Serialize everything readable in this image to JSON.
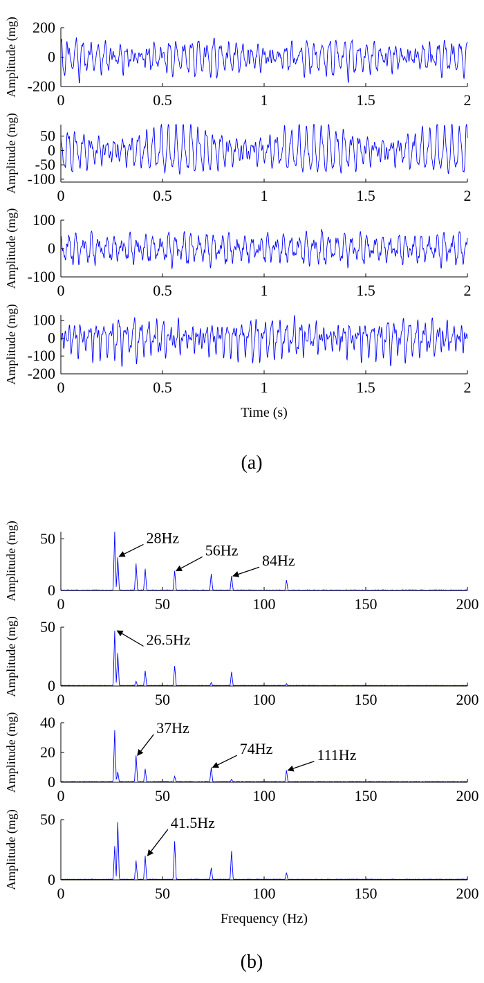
{
  "figure": {
    "label_a": "(a)",
    "label_b": "(b)"
  },
  "chart_data": [
    {
      "type": "line",
      "panel": "a",
      "xlabel": "",
      "ylabel": "Amplitude (mg)",
      "xlim": [
        0,
        2
      ],
      "ylim": [
        -200,
        200
      ],
      "xticks": [
        0,
        0.5,
        1,
        1.5,
        2
      ],
      "xtick_labels": [
        "0",
        "0.5",
        "1",
        "1.5",
        "2"
      ],
      "yticks": [
        -200,
        0,
        200
      ],
      "ytick_labels": [
        "-200",
        "0",
        "200"
      ],
      "signal": {
        "duration": 2,
        "peak_amplitude": 175,
        "components": [
          {
            "freq": 28,
            "amp": 55
          },
          {
            "freq": 26.5,
            "amp": 30
          },
          {
            "freq": 37,
            "amp": 25
          },
          {
            "freq": 41.5,
            "amp": 15
          },
          {
            "freq": 56,
            "amp": 15
          },
          {
            "freq": 84,
            "amp": 12
          },
          {
            "freq": 74,
            "amp": 12
          },
          {
            "freq": 111,
            "amp": 8
          }
        ],
        "seed": 11
      },
      "series": [
        {
          "color": "#0000ff"
        }
      ]
    },
    {
      "type": "line",
      "panel": "a",
      "xlabel": "",
      "ylabel": "Amplitude (mg)",
      "xlim": [
        0,
        2
      ],
      "ylim": [
        -110,
        90
      ],
      "xticks": [
        0,
        0.5,
        1,
        1.5,
        2
      ],
      "xtick_labels": [
        "0",
        "0.5",
        "1",
        "1.5",
        "2"
      ],
      "yticks": [
        -100,
        -50,
        0,
        50
      ],
      "ytick_labels": [
        "-100",
        "-50",
        "0",
        "50"
      ],
      "signal": {
        "duration": 2,
        "peak_amplitude": 108,
        "components": [
          {
            "freq": 26.5,
            "amp": 48
          },
          {
            "freq": 28,
            "amp": 28
          },
          {
            "freq": 56,
            "amp": 16
          },
          {
            "freq": 41.5,
            "amp": 13
          },
          {
            "freq": 84,
            "amp": 12
          }
        ],
        "seed": 23
      },
      "series": [
        {
          "color": "#0000ff"
        }
      ]
    },
    {
      "type": "line",
      "panel": "a",
      "xlabel": "",
      "ylabel": "Amplitude (mg)",
      "xlim": [
        0,
        2
      ],
      "ylim": [
        -100,
        100
      ],
      "xticks": [
        0,
        0.5,
        1,
        1.5,
        2
      ],
      "xtick_labels": [
        "0",
        "0.5",
        "1",
        "1.5",
        "2"
      ],
      "yticks": [
        -100,
        0,
        100
      ],
      "ytick_labels": [
        "-100",
        "0",
        "100"
      ],
      "signal": {
        "duration": 2,
        "peak_amplitude": 72,
        "components": [
          {
            "freq": 26.5,
            "amp": 35
          },
          {
            "freq": 37,
            "amp": 18
          },
          {
            "freq": 74,
            "amp": 10
          },
          {
            "freq": 41.5,
            "amp": 9
          },
          {
            "freq": 111,
            "amp": 8
          },
          {
            "freq": 28,
            "amp": 6
          }
        ],
        "seed": 37
      },
      "series": [
        {
          "color": "#0000ff"
        }
      ]
    },
    {
      "type": "line",
      "panel": "a",
      "xlabel": "Time (s)",
      "ylabel": "Amplitude (mg)",
      "xlim": [
        0,
        2
      ],
      "ylim": [
        -200,
        130
      ],
      "xticks": [
        0,
        0.5,
        1,
        1.5,
        2
      ],
      "xtick_labels": [
        "0",
        "0.5",
        "1",
        "1.5",
        "2"
      ],
      "yticks": [
        -200,
        -100,
        0,
        100
      ],
      "ytick_labels": [
        "-200",
        "-100",
        "0",
        "100"
      ],
      "signal": {
        "duration": 2,
        "peak_amplitude": 158,
        "components": [
          {
            "freq": 28,
            "amp": 48
          },
          {
            "freq": 56,
            "amp": 32
          },
          {
            "freq": 26.5,
            "amp": 28
          },
          {
            "freq": 84,
            "amp": 24
          },
          {
            "freq": 41.5,
            "amp": 20
          },
          {
            "freq": 37,
            "amp": 16
          },
          {
            "freq": 74,
            "amp": 10
          }
        ],
        "seed": 51
      },
      "series": [
        {
          "color": "#0000ff"
        }
      ]
    },
    {
      "type": "line",
      "panel": "b",
      "xlabel": "",
      "ylabel": "Amplitude (mg)",
      "xlim": [
        0,
        200
      ],
      "ylim": [
        0,
        57
      ],
      "xticks": [
        0,
        50,
        100,
        150,
        200
      ],
      "xtick_labels": [
        "0",
        "50",
        "100",
        "150",
        "200"
      ],
      "yticks": [
        0,
        50
      ],
      "ytick_labels": [
        "0",
        "50"
      ],
      "peaks": [
        {
          "freq": 26.5,
          "amp": 57
        },
        {
          "freq": 28,
          "amp": 32
        },
        {
          "freq": 37,
          "amp": 26
        },
        {
          "freq": 41.5,
          "amp": 21
        },
        {
          "freq": 56,
          "amp": 19
        },
        {
          "freq": 74,
          "amp": 16
        },
        {
          "freq": 84,
          "amp": 14
        },
        {
          "freq": 111,
          "amp": 10
        }
      ],
      "annotations": [
        {
          "text": "28Hz",
          "freq": 28,
          "amp": 33,
          "label_freq": 42,
          "label_amp": 46
        },
        {
          "text": "56Hz",
          "freq": 56,
          "amp": 19,
          "label_freq": 71,
          "label_amp": 34
        },
        {
          "text": "84Hz",
          "freq": 84,
          "amp": 14,
          "label_freq": 99,
          "label_amp": 24
        }
      ],
      "series": [
        {
          "color": "#0000ff"
        }
      ]
    },
    {
      "type": "line",
      "panel": "b",
      "xlabel": "",
      "ylabel": "Amplitude (mg)",
      "xlim": [
        0,
        200
      ],
      "ylim": [
        0,
        50
      ],
      "xticks": [
        0,
        50,
        100,
        150,
        200
      ],
      "xtick_labels": [
        "0",
        "50",
        "100",
        "150",
        "200"
      ],
      "yticks": [
        0,
        50
      ],
      "ytick_labels": [
        "0",
        "50"
      ],
      "peaks": [
        {
          "freq": 26.5,
          "amp": 47
        },
        {
          "freq": 28,
          "amp": 28
        },
        {
          "freq": 37,
          "amp": 4
        },
        {
          "freq": 41.5,
          "amp": 13
        },
        {
          "freq": 56,
          "amp": 17
        },
        {
          "freq": 74,
          "amp": 3
        },
        {
          "freq": 84,
          "amp": 12
        },
        {
          "freq": 111,
          "amp": 2
        }
      ],
      "annotations": [
        {
          "text": "26.5Hz",
          "freq": 27,
          "amp": 47,
          "label_freq": 42,
          "label_amp": 35
        }
      ],
      "series": [
        {
          "color": "#0000ff"
        }
      ]
    },
    {
      "type": "line",
      "panel": "b",
      "xlabel": "",
      "ylabel": "Amplitude (mg)",
      "xlim": [
        0,
        200
      ],
      "ylim": [
        0,
        40
      ],
      "xticks": [
        0,
        50,
        100,
        150,
        200
      ],
      "xtick_labels": [
        "0",
        "50",
        "100",
        "150",
        "200"
      ],
      "yticks": [
        0,
        20,
        40
      ],
      "ytick_labels": [
        "0",
        "20",
        "40"
      ],
      "peaks": [
        {
          "freq": 26.5,
          "amp": 35
        },
        {
          "freq": 28,
          "amp": 7
        },
        {
          "freq": 37,
          "amp": 18
        },
        {
          "freq": 41.5,
          "amp": 9
        },
        {
          "freq": 56,
          "amp": 4
        },
        {
          "freq": 74,
          "amp": 10
        },
        {
          "freq": 84,
          "amp": 2
        },
        {
          "freq": 111,
          "amp": 8
        }
      ],
      "annotations": [
        {
          "text": "37Hz",
          "freq": 37,
          "amp": 18,
          "label_freq": 47,
          "label_amp": 33
        },
        {
          "text": "74Hz",
          "freq": 74,
          "amp": 10,
          "label_freq": 88,
          "label_amp": 19
        },
        {
          "text": "111Hz",
          "freq": 111,
          "amp": 8,
          "label_freq": 126,
          "label_amp": 15
        }
      ],
      "series": [
        {
          "color": "#0000ff"
        }
      ]
    },
    {
      "type": "line",
      "panel": "b",
      "xlabel": "Frequency (Hz)",
      "ylabel": "Amplitude (mg)",
      "xlim": [
        0,
        200
      ],
      "ylim": [
        0,
        50
      ],
      "xticks": [
        0,
        50,
        100,
        150,
        200
      ],
      "xtick_labels": [
        "0",
        "50",
        "100",
        "150",
        "200"
      ],
      "yticks": [
        0,
        50
      ],
      "ytick_labels": [
        "0",
        "50"
      ],
      "peaks": [
        {
          "freq": 26.5,
          "amp": 28
        },
        {
          "freq": 28,
          "amp": 48
        },
        {
          "freq": 37,
          "amp": 16
        },
        {
          "freq": 41.5,
          "amp": 20
        },
        {
          "freq": 56,
          "amp": 32
        },
        {
          "freq": 74,
          "amp": 10
        },
        {
          "freq": 84,
          "amp": 24
        },
        {
          "freq": 111,
          "amp": 6
        }
      ],
      "annotations": [
        {
          "text": "41.5Hz",
          "freq": 42,
          "amp": 20,
          "label_freq": 54,
          "label_amp": 43
        }
      ],
      "series": [
        {
          "color": "#0000ff"
        }
      ]
    }
  ]
}
